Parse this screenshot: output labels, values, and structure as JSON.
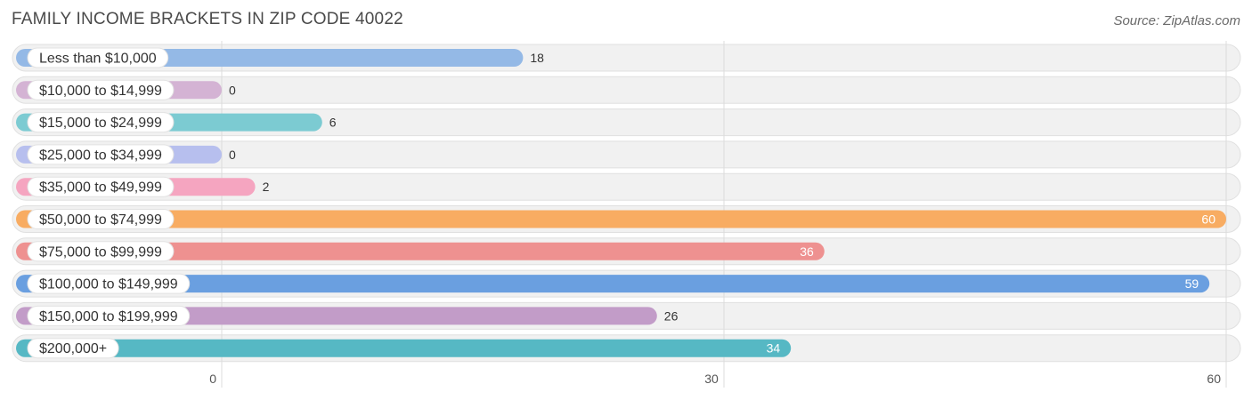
{
  "chart_title": "FAMILY INCOME BRACKETS IN ZIP CODE 40022",
  "source": "Source: ZipAtlas.com",
  "chart_data": {
    "type": "bar",
    "orientation": "horizontal",
    "title": "FAMILY INCOME BRACKETS IN ZIP CODE 40022",
    "categories": [
      "Less than $10,000",
      "$10,000 to $14,999",
      "$15,000 to $24,999",
      "$25,000 to $34,999",
      "$35,000 to $49,999",
      "$50,000 to $74,999",
      "$75,000 to $99,999",
      "$100,000 to $149,999",
      "$150,000 to $199,999",
      "$200,000+"
    ],
    "values": [
      18,
      0,
      6,
      0,
      2,
      60,
      36,
      59,
      26,
      34
    ],
    "colors": [
      "#94b9e6",
      "#d4b3d4",
      "#7ccbd2",
      "#b7bfee",
      "#f5a5c0",
      "#f8ac62",
      "#ee9190",
      "#6a9fe0",
      "#c29cc8",
      "#56b8c4"
    ],
    "xticks": [
      0,
      30,
      60
    ],
    "xlim": [
      0,
      60
    ],
    "xlabel": "",
    "ylabel": ""
  }
}
